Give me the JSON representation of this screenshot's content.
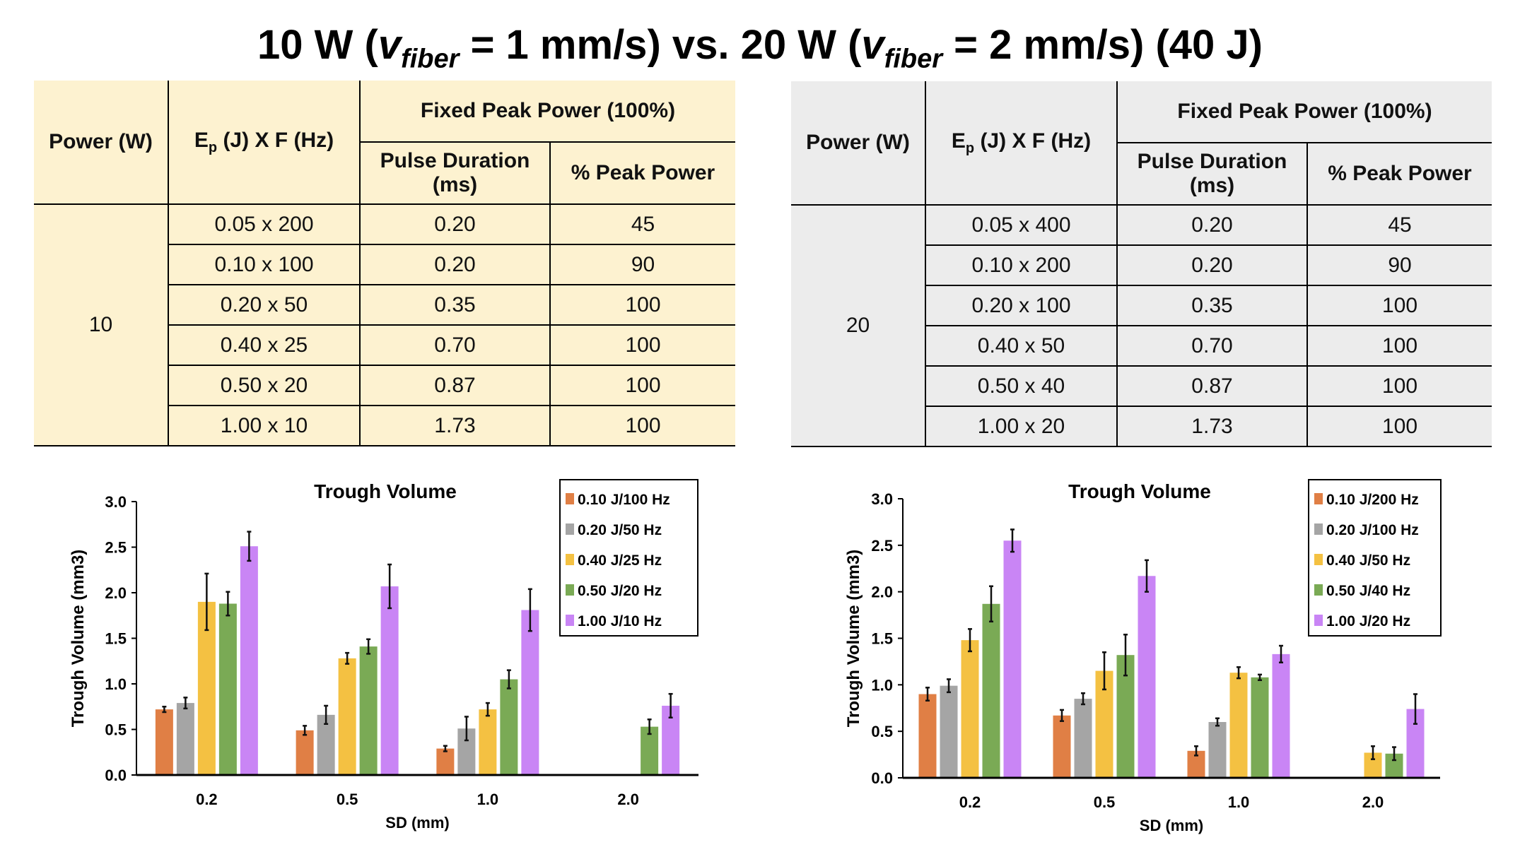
{
  "title": {
    "p1": "10 W (",
    "v1": "v",
    "s1": "fiber",
    "p2": " = 1 mm/s) vs. 20 W (",
    "v2": "v",
    "s2": "fiber",
    "p3": " = 2 mm/s) (40 J)"
  },
  "tables": [
    {
      "h_power": "Power (W)",
      "h_ep_main": "E",
      "h_ep_sub": "p",
      "h_ep_rest": " (J) X F (Hz)",
      "h_fixed": "Fixed Peak Power (100%)",
      "h_pd": "Pulse Duration (ms)",
      "h_pp": "% Peak Power",
      "power": "10",
      "rows": [
        [
          "0.05 x 200",
          "0.20",
          "45"
        ],
        [
          "0.10 x 100",
          "0.20",
          "90"
        ],
        [
          "0.20 x 50",
          "0.35",
          "100"
        ],
        [
          "0.40 x 25",
          "0.70",
          "100"
        ],
        [
          "0.50 x 20",
          "0.87",
          "100"
        ],
        [
          "1.00 x 10",
          "1.73",
          "100"
        ]
      ]
    },
    {
      "h_power": "Power (W)",
      "h_ep_main": "E",
      "h_ep_sub": "p",
      "h_ep_rest": " (J) X F (Hz)",
      "h_fixed": "Fixed Peak Power (100%)",
      "h_pd": "Pulse Duration (ms)",
      "h_pp": "% Peak Power",
      "power": "20",
      "rows": [
        [
          "0.05 x 400",
          "0.20",
          "45"
        ],
        [
          "0.10 x 200",
          "0.20",
          "90"
        ],
        [
          "0.20 x 100",
          "0.35",
          "100"
        ],
        [
          "0.40 x 50",
          "0.70",
          "100"
        ],
        [
          "0.50 x 40",
          "0.87",
          "100"
        ],
        [
          "1.00 x 20",
          "1.73",
          "100"
        ]
      ]
    }
  ],
  "chart_data": [
    {
      "type": "bar",
      "title": "Trough Volume",
      "xlabel": "SD (mm)",
      "ylabel": "Trough Volume (mm3)",
      "ylim": [
        0,
        3
      ],
      "yticks": [
        "0.0",
        "0.5",
        "1.0",
        "1.5",
        "2.0",
        "2.5",
        "3.0"
      ],
      "categories": [
        "0.2",
        "0.5",
        "1.0",
        "2.0"
      ],
      "legend": "top-right",
      "series": [
        {
          "name": "0.10 J/100 Hz",
          "color": "#e07f45",
          "values": [
            0.72,
            0.49,
            0.29,
            0
          ],
          "errors": [
            0.03,
            0.05,
            0.03,
            0
          ]
        },
        {
          "name": "0.20 J/50 Hz",
          "color": "#a5a5a5",
          "values": [
            0.79,
            0.66,
            0.51,
            0
          ],
          "errors": [
            0.06,
            0.1,
            0.13,
            0
          ]
        },
        {
          "name": "0.40 J/25 Hz",
          "color": "#f4c142",
          "values": [
            1.9,
            1.28,
            0.72,
            0
          ],
          "errors": [
            0.31,
            0.06,
            0.07,
            0
          ]
        },
        {
          "name": "0.50 J/20 Hz",
          "color": "#7aaa55",
          "values": [
            1.88,
            1.41,
            1.05,
            0.53
          ],
          "errors": [
            0.13,
            0.08,
            0.1,
            0.08
          ]
        },
        {
          "name": "1.00 J/10 Hz",
          "color": "#c985f5",
          "values": [
            2.51,
            2.07,
            1.81,
            0.76
          ],
          "errors": [
            0.16,
            0.24,
            0.23,
            0.13
          ]
        }
      ]
    },
    {
      "type": "bar",
      "title": "Trough Volume",
      "xlabel": "SD (mm)",
      "ylabel": "Trough Volume (mm3)",
      "ylim": [
        0,
        3
      ],
      "yticks": [
        "0.0",
        "0.5",
        "1.0",
        "1.5",
        "2.0",
        "2.5",
        "3.0"
      ],
      "categories": [
        "0.2",
        "0.5",
        "1.0",
        "2.0"
      ],
      "legend": "top-right",
      "series": [
        {
          "name": "0.10 J/200 Hz",
          "color": "#e07f45",
          "values": [
            0.9,
            0.67,
            0.29,
            0
          ],
          "errors": [
            0.07,
            0.06,
            0.05,
            0
          ]
        },
        {
          "name": "0.20 J/100 Hz",
          "color": "#a5a5a5",
          "values": [
            0.99,
            0.85,
            0.6,
            0
          ],
          "errors": [
            0.07,
            0.06,
            0.04,
            0
          ]
        },
        {
          "name": "0.40 J/50 Hz",
          "color": "#f4c142",
          "values": [
            1.48,
            1.15,
            1.13,
            0.27
          ],
          "errors": [
            0.12,
            0.2,
            0.06,
            0.07
          ]
        },
        {
          "name": "0.50 J/40 Hz",
          "color": "#7aaa55",
          "values": [
            1.87,
            1.32,
            1.08,
            0.26
          ],
          "errors": [
            0.19,
            0.22,
            0.03,
            0.07
          ]
        },
        {
          "name": "1.00 J/20 Hz",
          "color": "#c985f5",
          "values": [
            2.55,
            2.17,
            1.33,
            0.74
          ],
          "errors": [
            0.12,
            0.17,
            0.09,
            0.16
          ]
        }
      ]
    }
  ]
}
